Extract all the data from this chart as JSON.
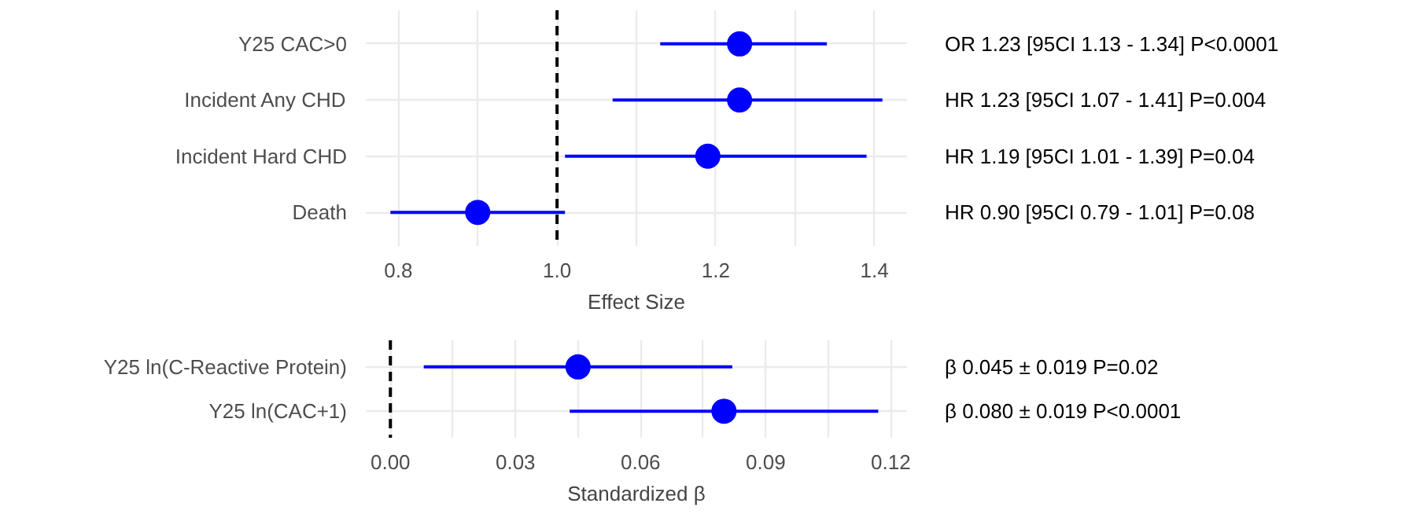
{
  "chart_data": [
    {
      "type": "scatter",
      "orientation": "horizontal",
      "categories": [
        "Y25 CAC>0",
        "Incident Any CHD",
        "Incident Hard CHD",
        "Death"
      ],
      "xlabel": "Effect Size",
      "xlim": [
        0.759,
        1.441
      ],
      "xticks": [
        {
          "value": 0.8,
          "label": "0.8"
        },
        {
          "value": 0.9,
          "label": null
        },
        {
          "value": 1.0,
          "label": "1.0"
        },
        {
          "value": 1.1,
          "label": null
        },
        {
          "value": 1.2,
          "label": "1.2"
        },
        {
          "value": 1.3,
          "label": null
        },
        {
          "value": 1.4,
          "label": "1.4"
        }
      ],
      "grid": true,
      "marker": "circle",
      "series": [
        {
          "color": "#0000ff",
          "values": [
            1.23,
            1.23,
            1.19,
            0.9
          ],
          "errors": [
            [
              1.13,
              1.34
            ],
            [
              1.07,
              1.41
            ],
            [
              1.01,
              1.39
            ],
            [
              0.79,
              1.01
            ]
          ]
        }
      ],
      "annotations": [
        "OR 1.23 [95CI 1.13 - 1.34] P<0.0001",
        "HR 1.23 [95CI 1.07 - 1.41] P=0.004",
        "HR 1.19 [95CI 1.01 - 1.39] P=0.04",
        "HR 0.90 [95CI 0.79 - 1.01] P=0.08"
      ],
      "ref_lines": [
        {
          "axis": "x",
          "value": 1.0,
          "color": "#000000",
          "line_style": "dashed"
        }
      ]
    },
    {
      "type": "scatter",
      "orientation": "horizontal",
      "categories": [
        "Y25 ln(C-Reactive Protein)",
        "Y25 ln(CAC+1)"
      ],
      "xlabel": "Standardized β",
      "xlim": [
        -0.0059,
        0.1239
      ],
      "xticks": [
        {
          "value": 0.0,
          "label": "0.00"
        },
        {
          "value": 0.015,
          "label": null
        },
        {
          "value": 0.03,
          "label": "0.03"
        },
        {
          "value": 0.045,
          "label": null
        },
        {
          "value": 0.06,
          "label": "0.06"
        },
        {
          "value": 0.075,
          "label": null
        },
        {
          "value": 0.09,
          "label": "0.09"
        },
        {
          "value": 0.105,
          "label": null
        },
        {
          "value": 0.12,
          "label": "0.12"
        }
      ],
      "grid": true,
      "marker": "circle",
      "series": [
        {
          "color": "#0000ff",
          "values": [
            0.045,
            0.08
          ],
          "errors": [
            0.037,
            0.037
          ]
        }
      ],
      "annotations": [
        "β 0.045 ± 0.019 P=0.02",
        "β 0.080 ± 0.019 P<0.0001"
      ],
      "ref_lines": [
        {
          "axis": "x",
          "value": 0.0,
          "color": "#000000",
          "line_style": "dashed"
        }
      ]
    }
  ]
}
